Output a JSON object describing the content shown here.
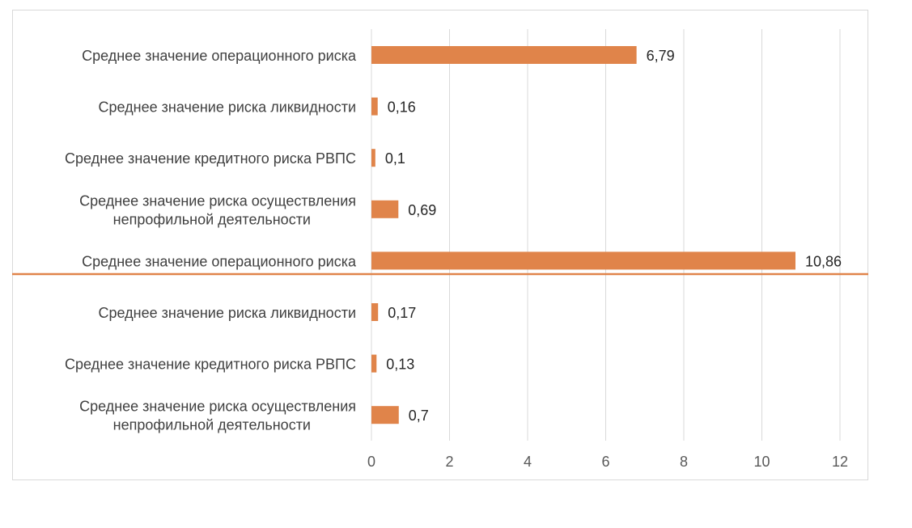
{
  "chart_data": {
    "type": "bar",
    "orientation": "horizontal",
    "title": "",
    "xlabel": "",
    "ylabel": "",
    "xlim": [
      0,
      12
    ],
    "x_ticks": [
      "0",
      "2",
      "4",
      "6",
      "8",
      "10",
      "12"
    ],
    "grid": "vertical",
    "legend": "none",
    "bar_color": "#e0844a",
    "separator_color": "#e0844a",
    "categories": [
      [
        "Среднее значение операционного риска"
      ],
      [
        "Среднее значение риска ликвидности"
      ],
      [
        "Среднее значение кредитного риска РВПС"
      ],
      [
        "Среднее значение риска осуществления",
        "непрофильной деятельности"
      ],
      [
        "Среднее значение операционного риска"
      ],
      [
        "Среднее значение риска ликвидности"
      ],
      [
        "Среднее значение кредитного риска РВПС"
      ],
      [
        "Среднее значение риска осуществления",
        "непрофильной деятельности"
      ]
    ],
    "values": [
      6.79,
      0.16,
      0.1,
      0.69,
      10.86,
      0.17,
      0.13,
      0.7
    ],
    "value_labels": [
      "6,79",
      "0,16",
      "0,1",
      "0,69",
      "10,86",
      "0,17",
      "0,13",
      "0,7"
    ]
  }
}
